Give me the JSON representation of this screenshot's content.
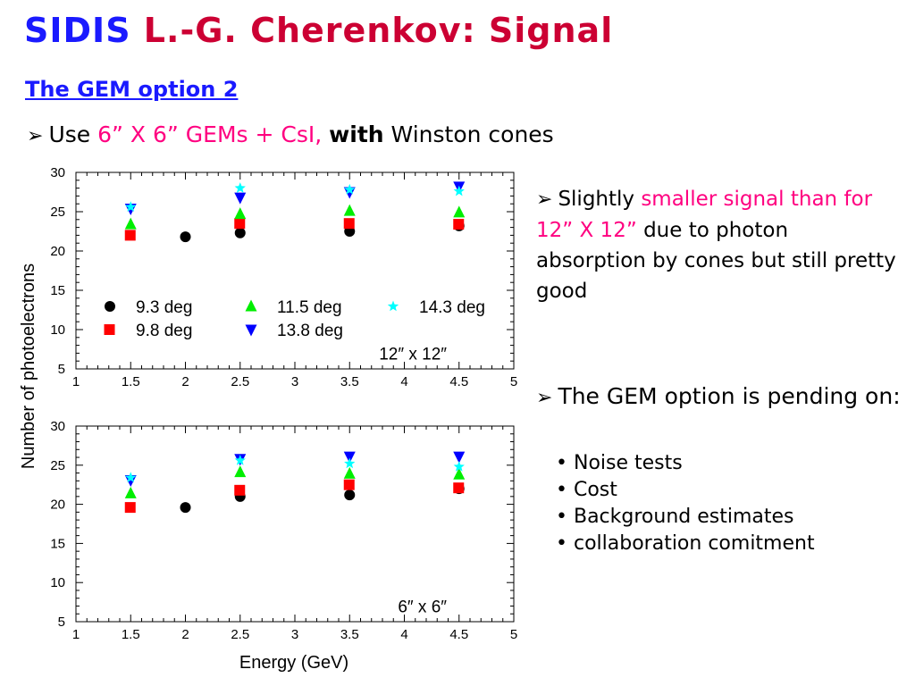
{
  "header": {
    "title_a": "SIDIS",
    "title_b": "L.-G. Cherenkov: Signal",
    "subtitle": "The GEM option 2",
    "line_prefix": "Use",
    "line_pink": "6” X 6” GEMs + CsI,",
    "line_bold": "with",
    "line_rest": "Winston cones"
  },
  "notes": {
    "n1_a": "Slightly",
    "n1_pink": "smaller signal than for 12” X 12”",
    "n1_b": "due to photon absorption by cones but still pretty good",
    "n2": "The GEM option is pending on:",
    "bullets": [
      "Noise tests",
      "Cost",
      "Background estimates",
      "collaboration comitment"
    ]
  },
  "colors": {
    "s93": "#000000",
    "s98": "#ff0000",
    "s115": "#00ee00",
    "s138": "#0000ff",
    "s143": "#00ffff"
  },
  "chart_data": [
    {
      "type": "scatter",
      "title": "12″ x 12″",
      "xlabel": "Energy (GeV)",
      "ylabel": "Number of photoelectrons",
      "xlim": [
        1,
        5
      ],
      "ylim": [
        5,
        30
      ],
      "xticks": [
        "1",
        "1.5",
        "2",
        "2.5",
        "3",
        "3.5",
        "4",
        "4.5",
        "5"
      ],
      "yticks": [
        "5",
        "10",
        "15",
        "20",
        "25",
        "30"
      ],
      "legend": "inside-lower",
      "series": [
        {
          "name": "9.3 deg",
          "marker": "circle",
          "color": "#000000",
          "x": [
            2,
            2.5,
            3.5,
            4.5
          ],
          "y": [
            21.8,
            22.3,
            22.5,
            23.2
          ]
        },
        {
          "name": "9.8 deg",
          "marker": "square",
          "color": "#ff0000",
          "x": [
            1.5,
            2.5,
            3.5,
            4.5
          ],
          "y": [
            22.0,
            23.5,
            23.5,
            23.4
          ]
        },
        {
          "name": "11.5 deg",
          "marker": "triangle-up",
          "color": "#00ee00",
          "x": [
            1.5,
            2.5,
            3.5,
            4.5
          ],
          "y": [
            23.4,
            24.7,
            25.1,
            24.9
          ]
        },
        {
          "name": "13.8 deg",
          "marker": "triangle-down",
          "color": "#0000ff",
          "x": [
            1.5,
            2.5,
            3.5,
            4.5
          ],
          "y": [
            25.4,
            26.8,
            27.5,
            28.2
          ]
        },
        {
          "name": "14.3 deg",
          "marker": "star",
          "color": "#00ffff",
          "x": [
            1.5,
            2.5,
            3.5,
            4.5
          ],
          "y": [
            25.6,
            28.0,
            27.8,
            27.6
          ]
        }
      ]
    },
    {
      "type": "scatter",
      "title": "6″ x 6″",
      "xlabel": "Energy (GeV)",
      "ylabel": "Number of photoelectrons",
      "xlim": [
        1,
        5
      ],
      "ylim": [
        5,
        30
      ],
      "xticks": [
        "1",
        "1.5",
        "2",
        "2.5",
        "3",
        "3.5",
        "4",
        "4.5",
        "5"
      ],
      "yticks": [
        "5",
        "10",
        "15",
        "20",
        "25",
        "30"
      ],
      "series": [
        {
          "name": "9.3 deg",
          "marker": "circle",
          "color": "#000000",
          "x": [
            2,
            2.5,
            3.5,
            4.5
          ],
          "y": [
            19.6,
            21.0,
            21.2,
            22.0
          ]
        },
        {
          "name": "9.8 deg",
          "marker": "square",
          "color": "#ff0000",
          "x": [
            1.5,
            2.5,
            3.5,
            4.5
          ],
          "y": [
            19.6,
            21.8,
            22.5,
            22.1
          ]
        },
        {
          "name": "11.5 deg",
          "marker": "triangle-up",
          "color": "#00ee00",
          "x": [
            1.5,
            2.5,
            3.5,
            4.5
          ],
          "y": [
            21.4,
            24.1,
            23.9,
            23.8
          ]
        },
        {
          "name": "13.8 deg",
          "marker": "triangle-down",
          "color": "#0000ff",
          "x": [
            1.5,
            2.5,
            3.5,
            4.5
          ],
          "y": [
            23.1,
            25.8,
            26.1,
            26.1
          ]
        },
        {
          "name": "14.3 deg",
          "marker": "star",
          "color": "#00ffff",
          "x": [
            1.5,
            2.5,
            3.5,
            4.5
          ],
          "y": [
            23.4,
            25.6,
            25.2,
            24.8
          ]
        }
      ]
    }
  ]
}
